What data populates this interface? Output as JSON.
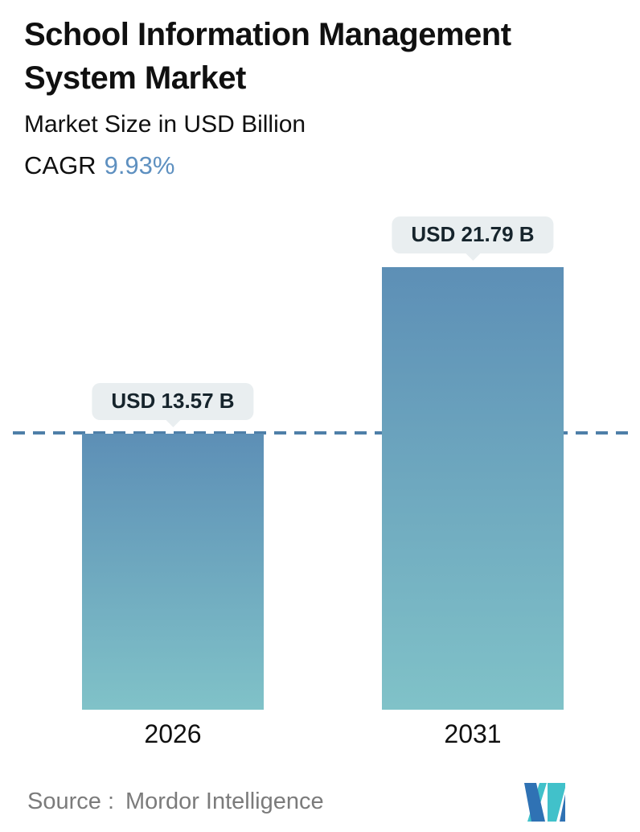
{
  "header": {
    "title_line1": "School Information Management",
    "title_line2": "System Market",
    "subtitle": "Market Size in USD Billion",
    "cagr_label": "CAGR",
    "cagr_value": "9.93%"
  },
  "chart_data": {
    "type": "bar",
    "title": "School Information Management System Market",
    "subtitle": "Market Size in USD Billion",
    "cagr_percent": 9.93,
    "categories": [
      "2026",
      "2031"
    ],
    "values": [
      13.57,
      21.79
    ],
    "value_labels": [
      "USD 13.57 B",
      "USD 21.79 B"
    ],
    "unit": "USD Billion",
    "ylim": [
      0,
      21.79
    ],
    "baseline_reference_value": 13.57,
    "grid": false,
    "legend": false,
    "bar_gradient": [
      "#5d8fb6",
      "#80c2c8"
    ],
    "dashed_reference_line": true
  },
  "footer": {
    "source_label": "Source :",
    "source_value": "Mordor Intelligence",
    "logo": "mordor-intelligence-logo"
  },
  "colors": {
    "text": "#101010",
    "accent_blue": "#5e90c0",
    "bar_gradient_top": "#5d8fb6",
    "bar_gradient_bottom": "#80c2c8",
    "dashed_line": "#4e7fa8",
    "badge_bg": "#e9eef0",
    "badge_text": "#16242c",
    "source_text": "#7b7b7b",
    "logo_blue": "#2f72b4",
    "logo_teal": "#41c1ca"
  }
}
